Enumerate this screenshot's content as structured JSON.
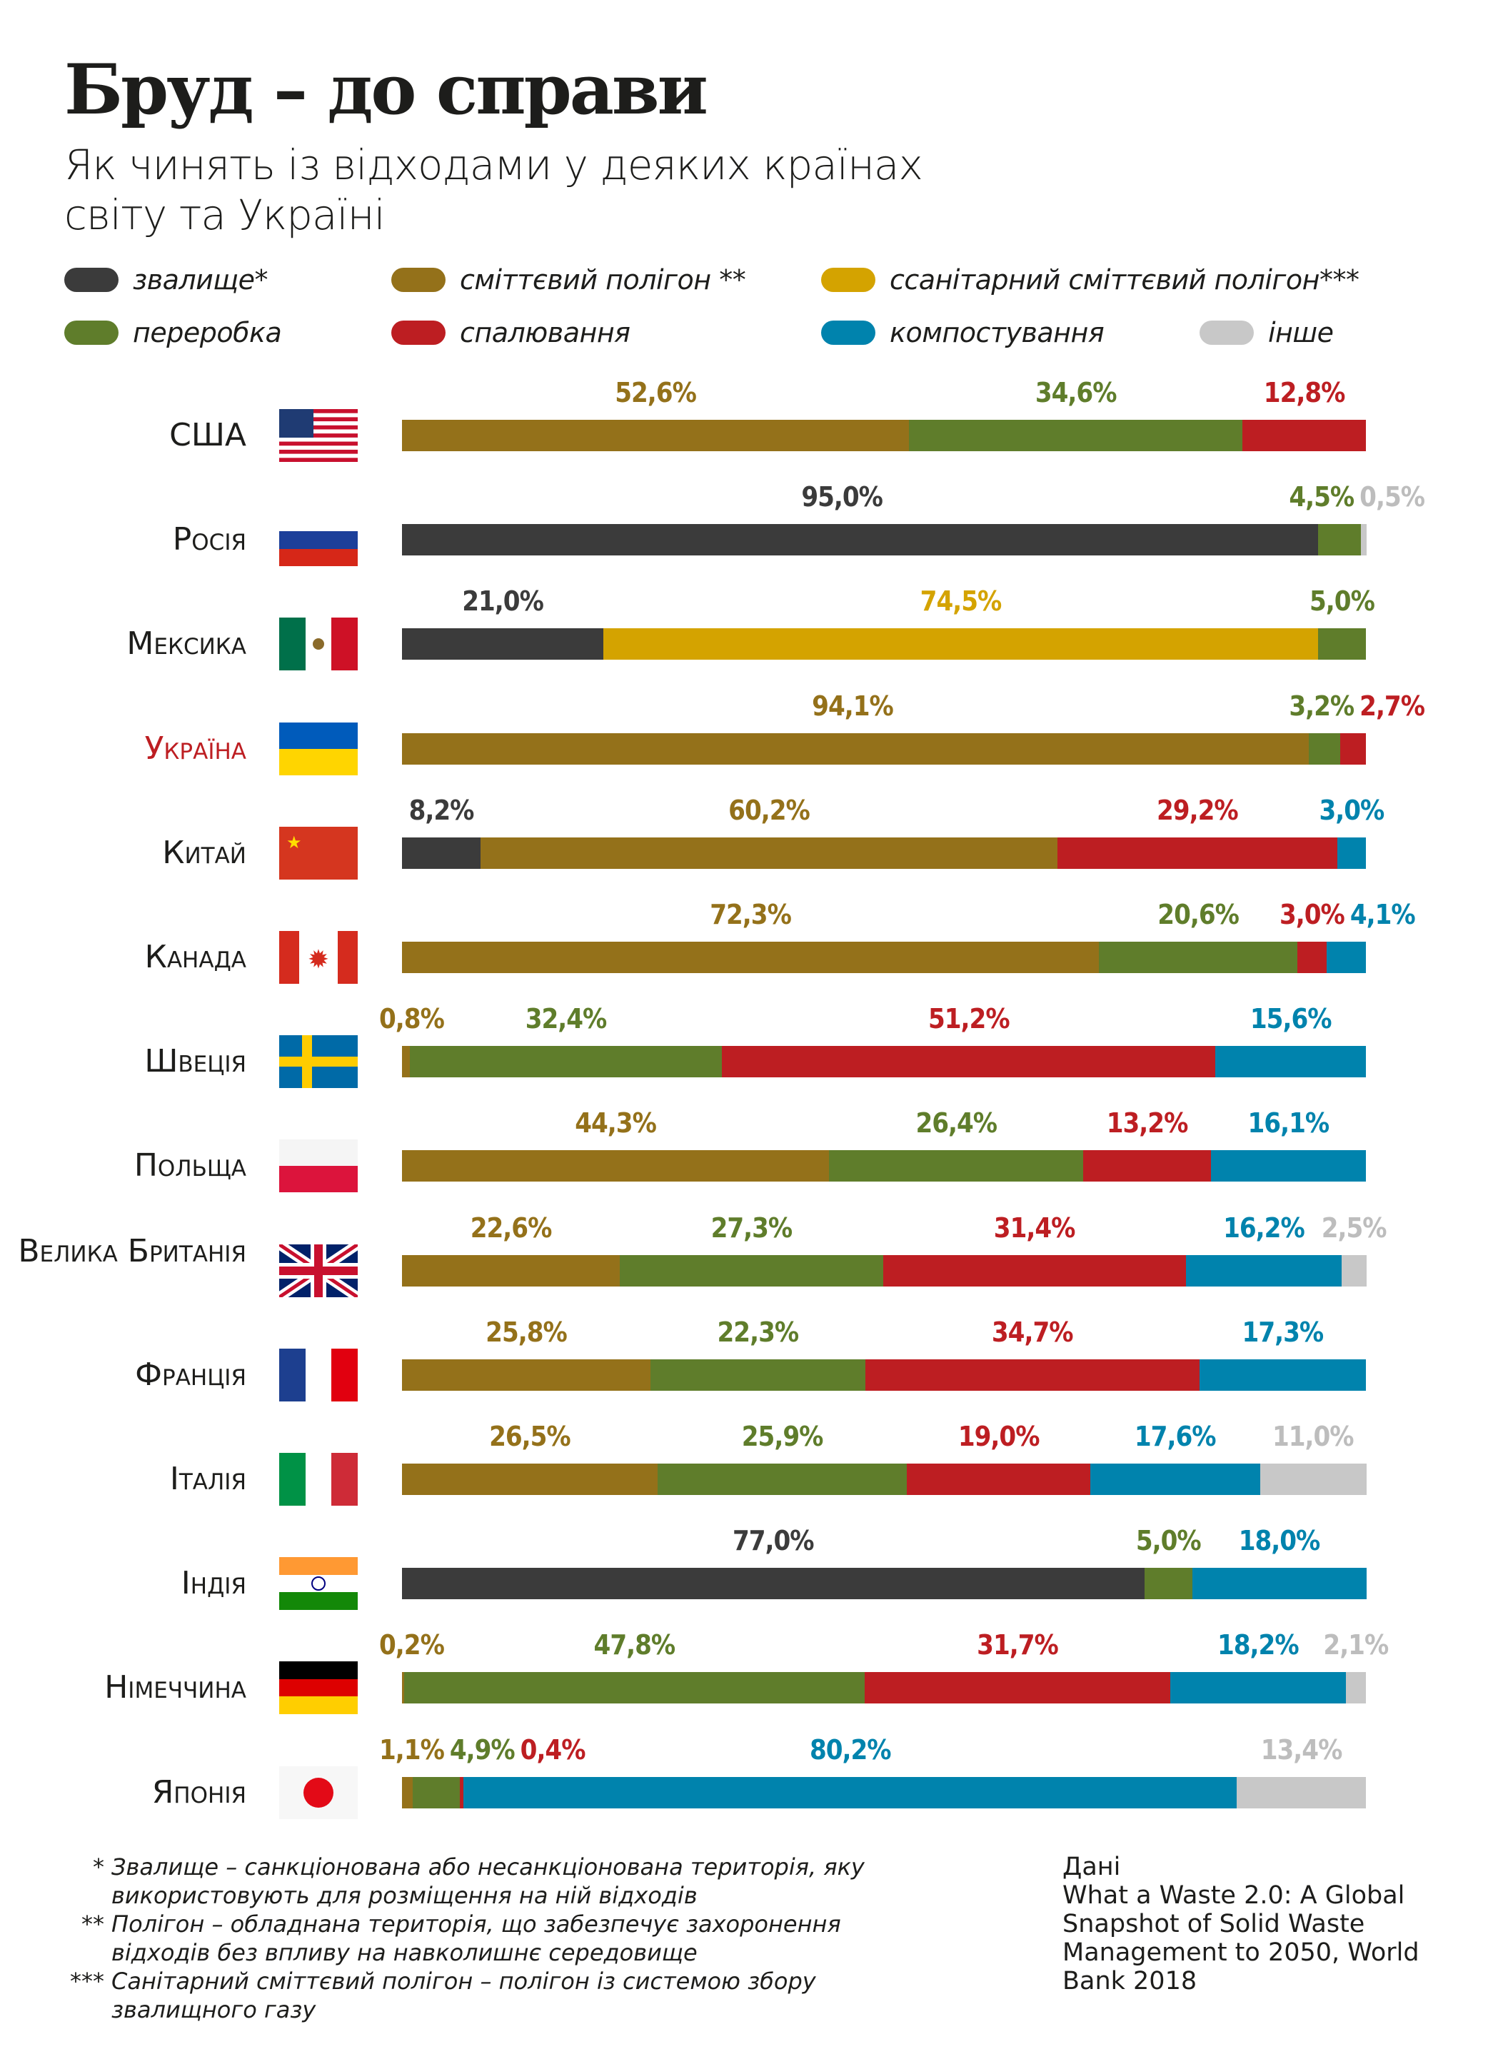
{
  "title": "Бруд – до справи",
  "subtitle": "Як чинять із відходами у деяких країнах світу та Україні",
  "legend": [
    {
      "key": "dump",
      "label": "звалище*",
      "color": "#3b3b3b",
      "label_color": "#3b3b3b"
    },
    {
      "key": "landfill",
      "label": "сміттєвий полігон **",
      "color": "#94711a",
      "label_color": "#94711a"
    },
    {
      "key": "sanitary",
      "label": "ссанітарний сміттєвий полігон***",
      "color": "#d4a300",
      "label_color": "#d4a300"
    },
    {
      "key": "recycling",
      "label": "переробка",
      "color": "#5f7d2b",
      "label_color": "#5f7d2b"
    },
    {
      "key": "incineration",
      "label": "спалювання",
      "color": "#bd1e22",
      "label_color": "#bd1e22"
    },
    {
      "key": "composting",
      "label": "компостування",
      "color": "#0083ad",
      "label_color": "#0083ad"
    },
    {
      "key": "other",
      "label": "інше",
      "color": "#c8c8c8",
      "label_color": "#bdbdbd"
    }
  ],
  "chart_data": {
    "type": "bar",
    "orientation": "horizontal-stacked-100",
    "title": "Бруд – до справи",
    "unit": "%",
    "categories": [
      "США",
      "Росія",
      "Мексика",
      "Україна",
      "Китай",
      "Канада",
      "Швеція",
      "Польща",
      "Велика Британія",
      "Франція",
      "Італія",
      "Індія",
      "Німеччина",
      "Японія"
    ],
    "rows": [
      {
        "country": "США",
        "flag": "us",
        "segments": [
          {
            "k": "landfill",
            "v": 52.6,
            "t": "52,6%"
          },
          {
            "k": "recycling",
            "v": 34.6,
            "t": "34,6%"
          },
          {
            "k": "incineration",
            "v": 12.8,
            "t": "12,8%"
          }
        ]
      },
      {
        "country": "Росія",
        "flag": "ru",
        "segments": [
          {
            "k": "dump",
            "v": 95.0,
            "t": "95,0%"
          },
          {
            "k": "recycling",
            "v": 4.5,
            "t": "4,5%"
          },
          {
            "k": "other",
            "v": 0.5,
            "t": "0,5%"
          }
        ]
      },
      {
        "country": "Мексика",
        "flag": "mx",
        "segments": [
          {
            "k": "dump",
            "v": 21.0,
            "t": "21,0%"
          },
          {
            "k": "sanitary",
            "v": 74.5,
            "t": "74,5%"
          },
          {
            "k": "recycling",
            "v": 5.0,
            "t": "5,0%"
          }
        ]
      },
      {
        "country": "Україна",
        "flag": "ua",
        "highlight": "#bd1e22",
        "segments": [
          {
            "k": "landfill",
            "v": 94.1,
            "t": "94,1%"
          },
          {
            "k": "recycling",
            "v": 3.2,
            "t": "3,2%"
          },
          {
            "k": "incineration",
            "v": 2.7,
            "t": "2,7%"
          }
        ]
      },
      {
        "country": "Китай",
        "flag": "cn",
        "segments": [
          {
            "k": "dump",
            "v": 8.2,
            "t": "8,2%"
          },
          {
            "k": "landfill",
            "v": 60.2,
            "t": "60,2%"
          },
          {
            "k": "incineration",
            "v": 29.2,
            "t": "29,2%"
          },
          {
            "k": "composting",
            "v": 3.0,
            "t": "3,0%"
          }
        ]
      },
      {
        "country": "Канада",
        "flag": "ca",
        "segments": [
          {
            "k": "landfill",
            "v": 72.3,
            "t": "72,3%"
          },
          {
            "k": "recycling",
            "v": 20.6,
            "t": "20,6%"
          },
          {
            "k": "incineration",
            "v": 3.0,
            "t": "3,0%"
          },
          {
            "k": "composting",
            "v": 4.1,
            "t": "4,1%"
          }
        ]
      },
      {
        "country": "Швеція",
        "flag": "se",
        "segments": [
          {
            "k": "landfill",
            "v": 0.8,
            "t": "0,8%"
          },
          {
            "k": "recycling",
            "v": 32.4,
            "t": "32,4%"
          },
          {
            "k": "incineration",
            "v": 51.2,
            "t": "51,2%"
          },
          {
            "k": "composting",
            "v": 15.6,
            "t": "15,6%"
          }
        ]
      },
      {
        "country": "Польща",
        "flag": "pl",
        "segments": [
          {
            "k": "landfill",
            "v": 44.3,
            "t": "44,3%"
          },
          {
            "k": "recycling",
            "v": 26.4,
            "t": "26,4%"
          },
          {
            "k": "incineration",
            "v": 13.2,
            "t": "13,2%"
          },
          {
            "k": "composting",
            "v": 16.1,
            "t": "16,1%"
          }
        ]
      },
      {
        "country": "Велика Британія",
        "flag": "gb",
        "segments": [
          {
            "k": "landfill",
            "v": 22.6,
            "t": "22,6%"
          },
          {
            "k": "recycling",
            "v": 27.3,
            "t": "27,3%"
          },
          {
            "k": "incineration",
            "v": 31.4,
            "t": "31,4%"
          },
          {
            "k": "composting",
            "v": 16.2,
            "t": "16,2%"
          },
          {
            "k": "other",
            "v": 2.5,
            "t": "2,5%"
          }
        ]
      },
      {
        "country": "Франція",
        "flag": "fr",
        "segments": [
          {
            "k": "landfill",
            "v": 25.8,
            "t": "25,8%"
          },
          {
            "k": "recycling",
            "v": 22.3,
            "t": "22,3%"
          },
          {
            "k": "incineration",
            "v": 34.7,
            "t": "34,7%"
          },
          {
            "k": "composting",
            "v": 17.3,
            "t": "17,3%"
          }
        ]
      },
      {
        "country": "Італія",
        "flag": "it",
        "segments": [
          {
            "k": "landfill",
            "v": 26.5,
            "t": "26,5%"
          },
          {
            "k": "recycling",
            "v": 25.9,
            "t": "25,9%"
          },
          {
            "k": "incineration",
            "v": 19.0,
            "t": "19,0%"
          },
          {
            "k": "composting",
            "v": 17.6,
            "t": "17,6%"
          },
          {
            "k": "other",
            "v": 11.0,
            "t": "11,0%"
          }
        ]
      },
      {
        "country": "Індія",
        "flag": "in",
        "segments": [
          {
            "k": "dump",
            "v": 77.0,
            "t": "77,0%"
          },
          {
            "k": "recycling",
            "v": 5.0,
            "t": "5,0%"
          },
          {
            "k": "composting",
            "v": 18.0,
            "t": "18,0%"
          }
        ]
      },
      {
        "country": "Німеччина",
        "flag": "de",
        "segments": [
          {
            "k": "landfill",
            "v": 0.2,
            "t": "0,2%"
          },
          {
            "k": "recycling",
            "v": 47.8,
            "t": "47,8%"
          },
          {
            "k": "incineration",
            "v": 31.7,
            "t": "31,7%"
          },
          {
            "k": "composting",
            "v": 18.2,
            "t": "18,2%"
          },
          {
            "k": "other",
            "v": 2.1,
            "t": "2,1%"
          }
        ]
      },
      {
        "country": "Японія",
        "flag": "jp",
        "segments": [
          {
            "k": "landfill",
            "v": 1.1,
            "t": "1,1%"
          },
          {
            "k": "recycling",
            "v": 4.9,
            "t": "4,9%"
          },
          {
            "k": "incineration",
            "v": 0.4,
            "t": "0,4%"
          },
          {
            "k": "composting",
            "v": 80.2,
            "t": "80,2%"
          },
          {
            "k": "other",
            "v": 13.4,
            "t": "13,4%"
          }
        ]
      }
    ]
  },
  "notes": [
    {
      "mark": "*",
      "text": "Звалище – санкціонована або несанкціонована територія, яку використовують для розміщення на ній відходів"
    },
    {
      "mark": "**",
      "text": "Полігон – обладнана територія, що забезпечує захоронення відходів без впливу на навколишнє середовище"
    },
    {
      "mark": "***",
      "text": "Санітарний сміттєвий полігон – полігон із системою збору звалищного газу"
    }
  ],
  "source": {
    "label": "Дані",
    "text": "What a Waste 2.0: A Global Snapshot of Solid Waste Management to 2050, World Bank 2018"
  }
}
